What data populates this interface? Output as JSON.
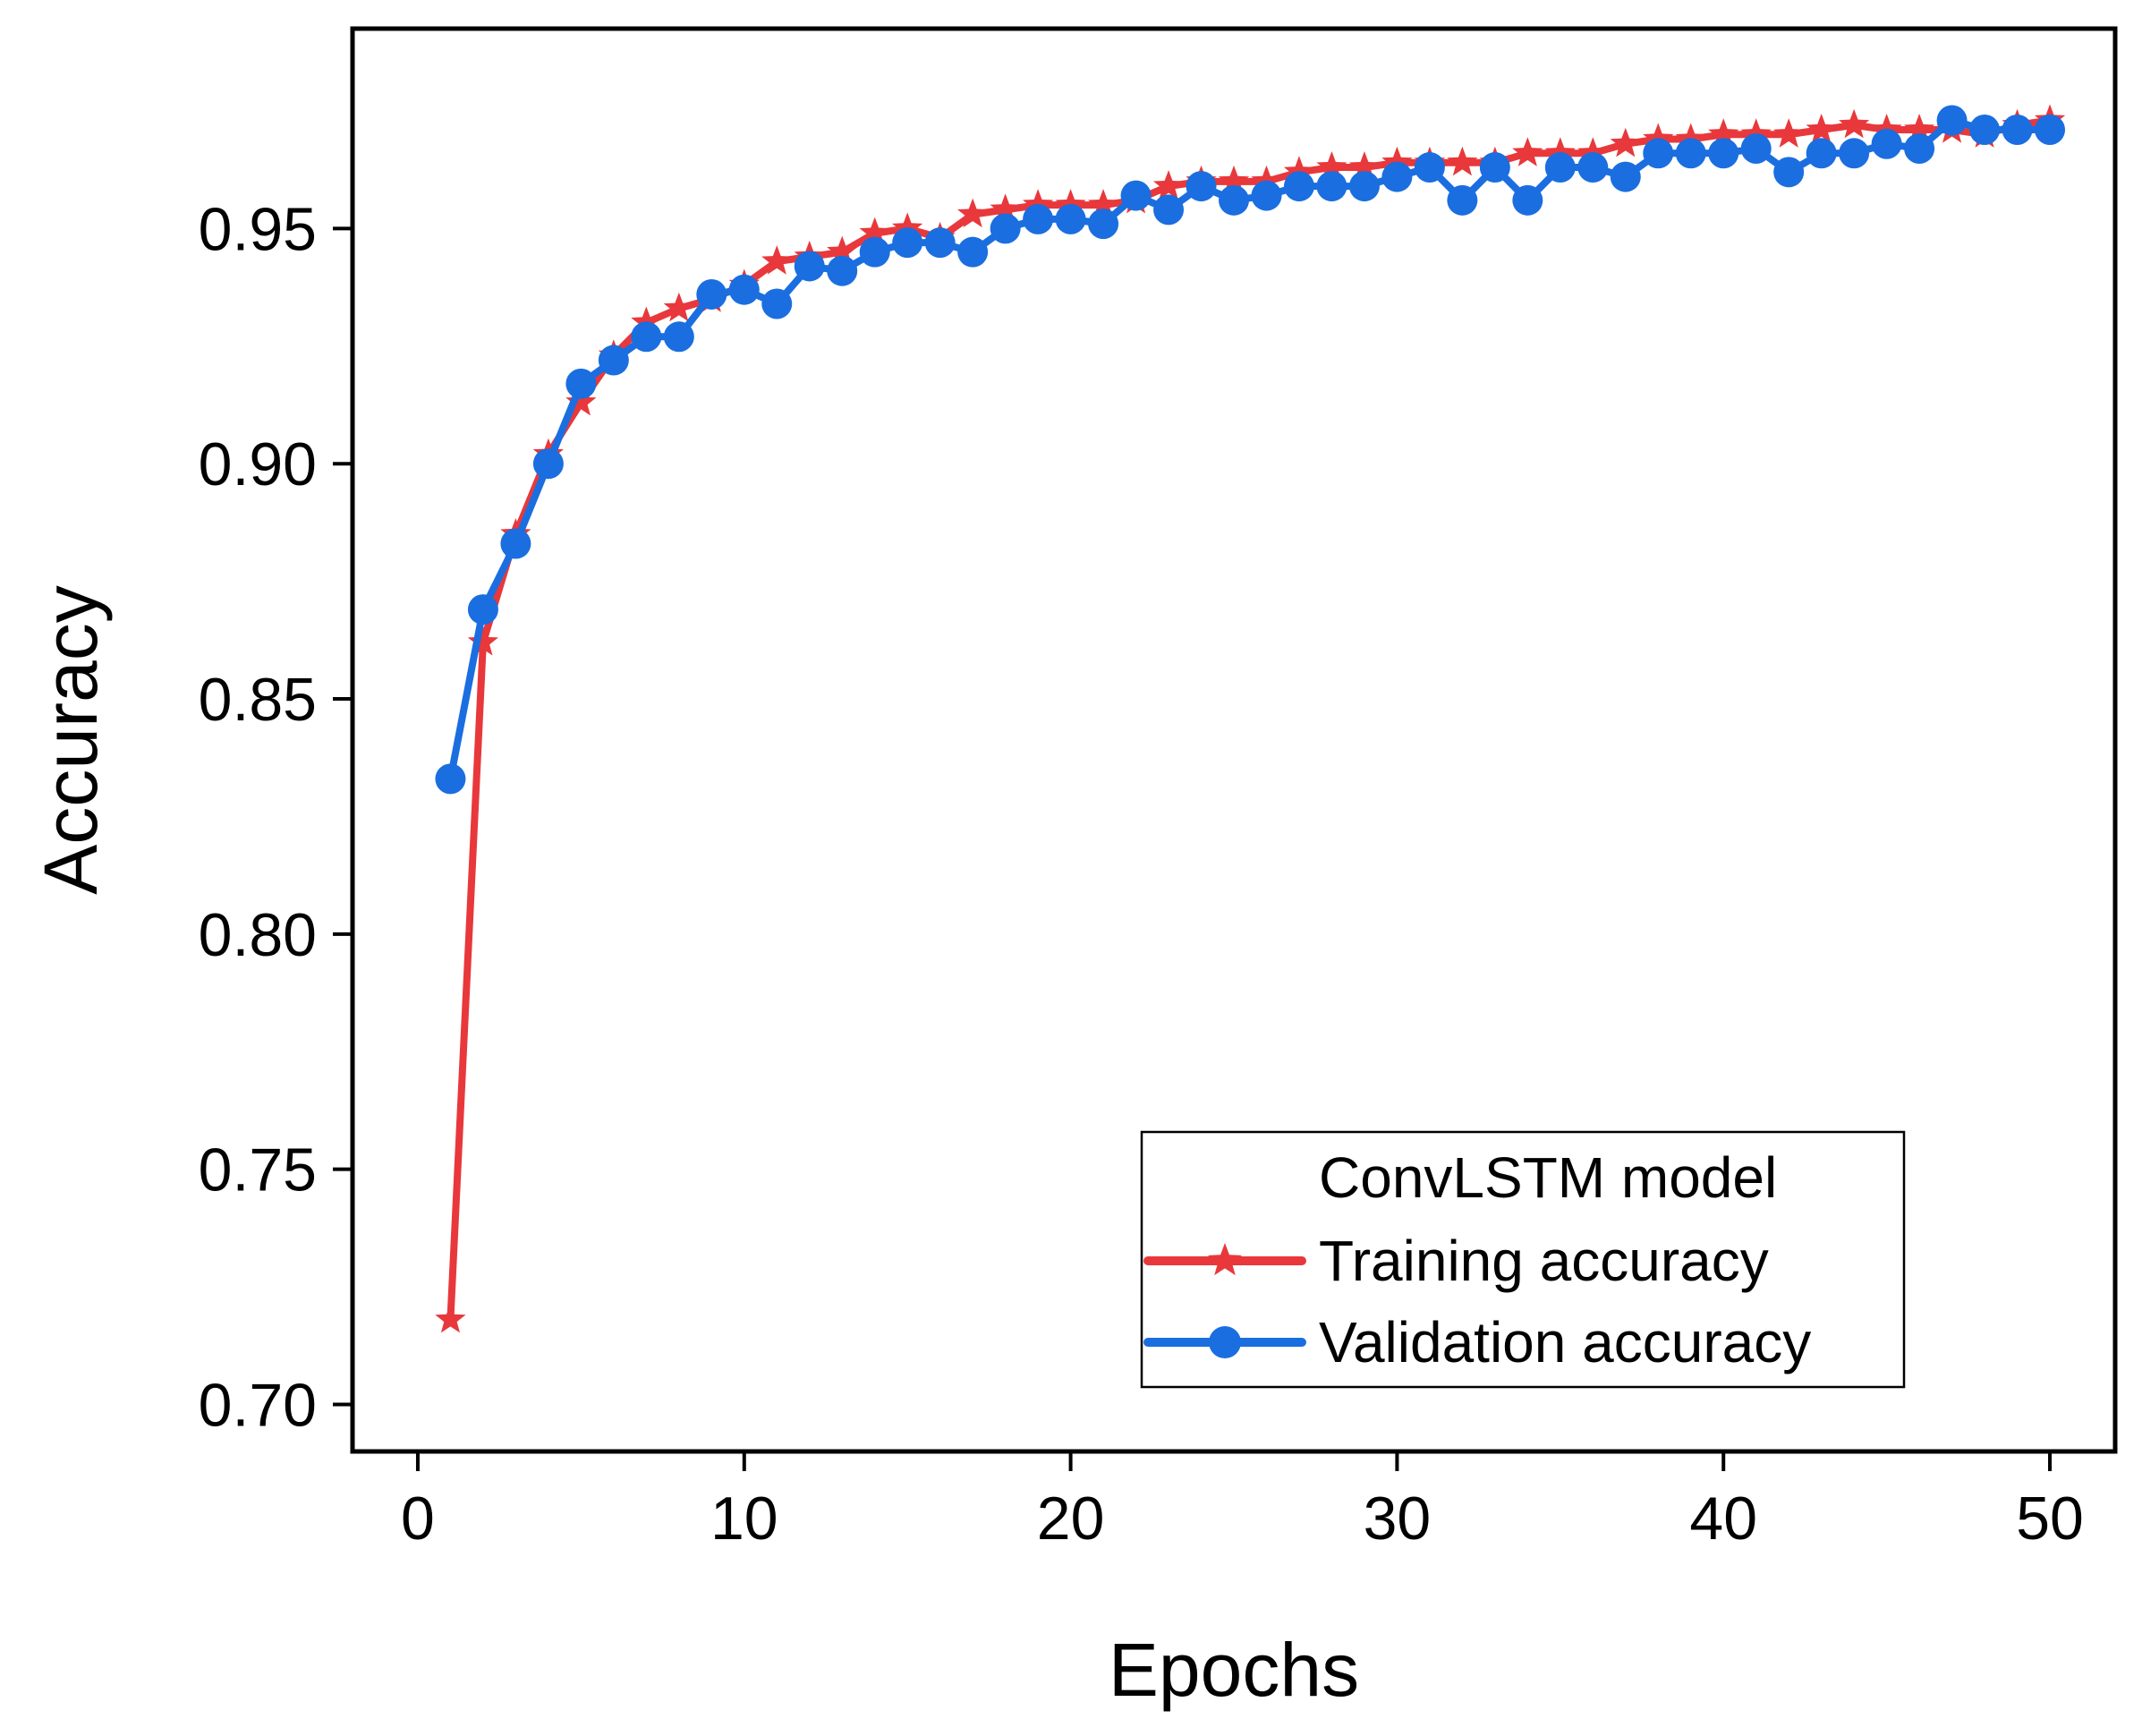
{
  "chart_data": {
    "type": "line",
    "title": "",
    "xlabel": "Epochs",
    "ylabel": "Accuracy",
    "xlim": [
      -2,
      52
    ],
    "ylim": [
      0.69,
      0.9925
    ],
    "xticks": [
      0,
      10,
      20,
      30,
      40,
      50
    ],
    "xtick_labels": [
      "0",
      "10",
      "20",
      "30",
      "40",
      "50"
    ],
    "yticks": [
      0.7,
      0.75,
      0.8,
      0.85,
      0.9,
      0.95
    ],
    "ytick_labels": [
      "0.70",
      "0.75",
      "0.80",
      "0.85",
      "0.90",
      "0.95"
    ],
    "grid": false,
    "legend": {
      "title": "ConvLSTM model",
      "position": "lower-right"
    },
    "x": [
      1,
      2,
      3,
      4,
      5,
      6,
      7,
      8,
      9,
      10,
      11,
      12,
      13,
      14,
      15,
      16,
      17,
      18,
      19,
      20,
      21,
      22,
      23,
      24,
      25,
      26,
      27,
      28,
      29,
      30,
      31,
      32,
      33,
      34,
      35,
      36,
      37,
      38,
      39,
      40,
      41,
      42,
      43,
      44,
      45,
      46,
      47,
      48,
      49,
      50
    ],
    "series": [
      {
        "name": "Training accuracy",
        "color": "#e8383b",
        "marker": "star",
        "values": [
          0.718,
          0.862,
          0.885,
          0.902,
          0.913,
          0.923,
          0.93,
          0.933,
          0.935,
          0.938,
          0.943,
          0.944,
          0.945,
          0.949,
          0.95,
          0.948,
          0.953,
          0.954,
          0.955,
          0.955,
          0.955,
          0.956,
          0.959,
          0.96,
          0.96,
          0.96,
          0.962,
          0.963,
          0.963,
          0.964,
          0.964,
          0.964,
          0.964,
          0.966,
          0.966,
          0.966,
          0.968,
          0.969,
          0.969,
          0.97,
          0.97,
          0.97,
          0.971,
          0.972,
          0.971,
          0.971,
          0.971,
          0.97,
          0.972,
          0.973
        ]
      },
      {
        "name": "Validation accuracy",
        "color": "#1a6ee0",
        "marker": "circle",
        "values": [
          0.833,
          0.869,
          0.883,
          0.9,
          0.917,
          0.922,
          0.927,
          0.927,
          0.936,
          0.937,
          0.934,
          0.942,
          0.941,
          0.945,
          0.947,
          0.947,
          0.945,
          0.95,
          0.952,
          0.952,
          0.951,
          0.957,
          0.954,
          0.959,
          0.956,
          0.957,
          0.959,
          0.959,
          0.959,
          0.961,
          0.963,
          0.956,
          0.963,
          0.956,
          0.963,
          0.963,
          0.961,
          0.966,
          0.966,
          0.966,
          0.967,
          0.962,
          0.966,
          0.966,
          0.968,
          0.967,
          0.973,
          0.971,
          0.971,
          0.971
        ]
      }
    ]
  }
}
